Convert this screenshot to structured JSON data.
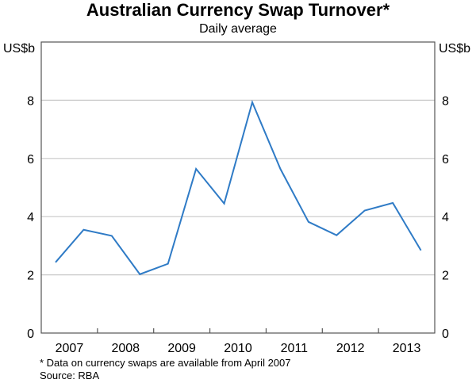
{
  "chart_data": {
    "type": "line",
    "title": "Australian Currency Swap Turnover*",
    "subtitle": "Daily average",
    "ylabel_left": "US$b",
    "ylabel_right": "US$b",
    "ylim": [
      0,
      10
    ],
    "yticks": [
      0,
      2,
      4,
      6,
      8
    ],
    "year_labels": [
      "2007",
      "2008",
      "2009",
      "2010",
      "2011",
      "2012",
      "2013"
    ],
    "x": [
      "2007 H1",
      "2007 H2",
      "2008 H1",
      "2008 H2",
      "2009 H1",
      "2009 H2",
      "2010 H1",
      "2010 H2",
      "2011 H1",
      "2011 H2",
      "2012 H1",
      "2012 H2",
      "2013 H1",
      "2013 H2"
    ],
    "series": [
      {
        "name": "Swap turnover",
        "color": "#2f7bc6",
        "values": [
          2.43,
          3.55,
          3.34,
          2.02,
          2.38,
          5.64,
          4.45,
          7.93,
          5.64,
          3.82,
          3.36,
          4.21,
          4.47,
          2.84
        ]
      }
    ],
    "grid": true,
    "footnote": "*     Data on currency swaps are available from April 2007",
    "source": "Source: RBA"
  }
}
